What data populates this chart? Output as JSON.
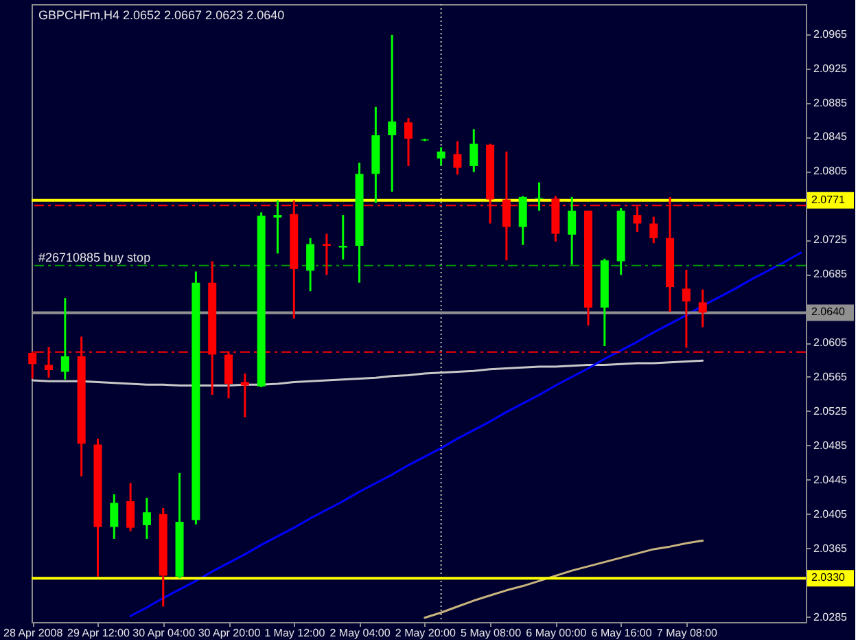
{
  "chart_data": {
    "type": "candlestick",
    "title": "GBPCHFm,H4 2.0652 2.0667 2.0623 2.0640",
    "categories": [
      "28 Apr 2008",
      null,
      null,
      null,
      "29 Apr 12:00",
      null,
      null,
      null,
      "30 Apr 04:00",
      null,
      null,
      null,
      "30 Apr 20:00",
      null,
      null,
      null,
      "1 May 12:00",
      null,
      null,
      null,
      "2 May 04:00",
      null,
      null,
      null,
      "2 May 20:00",
      null,
      null,
      null,
      "5 May 08:00",
      null,
      null,
      null,
      "6 May 00:00",
      null,
      null,
      null,
      "6 May 16:00",
      null,
      null,
      null,
      "7 May 08:00",
      null,
      null,
      null,
      null,
      null,
      null,
      null
    ],
    "ohlc": [
      [
        2.0593,
        2.0595,
        2.0563,
        2.058
      ],
      [
        2.0579,
        2.06,
        2.0564,
        2.0573
      ],
      [
        2.0571,
        2.0657,
        2.0562,
        2.0589
      ],
      [
        2.0589,
        2.0612,
        2.0449,
        2.0487
      ],
      [
        2.0486,
        2.0493,
        2.0332,
        2.039
      ],
      [
        2.039,
        2.0428,
        2.0376,
        2.0418
      ],
      [
        2.042,
        2.0441,
        2.0385,
        2.0389
      ],
      [
        2.0392,
        2.0424,
        2.0376,
        2.0407
      ],
      [
        2.0405,
        2.0412,
        2.0297,
        2.0333
      ],
      [
        2.0332,
        2.0453,
        2.033,
        2.0396
      ],
      [
        2.0398,
        2.0688,
        2.0393,
        2.0675
      ],
      [
        2.0675,
        2.07,
        2.0544,
        2.0591
      ],
      [
        2.0591,
        2.0595,
        2.054,
        2.0557
      ],
      [
        2.0559,
        2.0569,
        2.0518,
        2.0555
      ],
      [
        2.0554,
        2.0757,
        2.0553,
        2.0753
      ],
      [
        2.0751,
        2.0771,
        2.0709,
        2.0754
      ],
      [
        2.0755,
        2.0771,
        2.0633,
        2.0691
      ],
      [
        2.0689,
        2.0727,
        2.0665,
        2.072
      ],
      [
        2.072,
        2.0732,
        2.0684,
        2.0718
      ],
      [
        2.0716,
        2.0754,
        2.0702,
        2.0718
      ],
      [
        2.0718,
        2.0815,
        2.0675,
        2.0802
      ],
      [
        2.0802,
        2.088,
        2.0768,
        2.0847
      ],
      [
        2.0847,
        2.0964,
        2.0781,
        2.0863
      ],
      [
        2.0862,
        2.0867,
        2.0811,
        2.0843
      ],
      [
        2.0841,
        2.0843,
        2.084,
        2.0842
      ],
      [
        2.082,
        2.0833,
        2.0812,
        2.0828
      ],
      [
        2.0825,
        2.084,
        2.0801,
        2.0809
      ],
      [
        2.0811,
        2.0854,
        2.0804,
        2.0837
      ],
      [
        2.0836,
        2.0837,
        2.0744,
        2.0772
      ],
      [
        2.0772,
        2.0828,
        2.0701,
        2.074
      ],
      [
        2.074,
        2.0776,
        2.0719,
        2.0775
      ],
      [
        2.0773,
        2.0792,
        2.0759,
        2.0774
      ],
      [
        2.0773,
        2.0776,
        2.0723,
        2.0732
      ],
      [
        2.0731,
        2.0775,
        2.0696,
        2.0759
      ],
      [
        2.0759,
        2.0759,
        2.0625,
        2.0646
      ],
      [
        2.0646,
        2.0703,
        2.0601,
        2.0701
      ],
      [
        2.07,
        2.0762,
        2.0684,
        2.0759
      ],
      [
        2.0754,
        2.0764,
        2.0734,
        2.0744
      ],
      [
        2.0744,
        2.0752,
        2.0721,
        2.0727
      ],
      [
        2.0727,
        2.0775,
        2.0641,
        2.067
      ],
      [
        2.0668,
        2.069,
        2.0599,
        2.0653
      ],
      [
        2.0652,
        2.0667,
        2.0623,
        2.064
      ],
      null,
      null,
      null,
      null,
      null,
      null
    ],
    "colors": [
      "#ff0000",
      "#ff0000",
      "#00ff00",
      "#ff0000",
      "#ff0000",
      "#00ff00",
      "#ff0000",
      "#00ff00",
      "#ff0000",
      "#00ff00",
      "#00ff00",
      "#ff0000",
      "#ff0000",
      "#ff0000",
      "#00ff00",
      "#00ff00",
      "#ff0000",
      "#00ff00",
      "#ff0000",
      "#00ff00",
      "#00ff00",
      "#00ff00",
      "#00ff00",
      "#ff0000",
      "#00ff00",
      "#00ff00",
      "#ff0000",
      "#00ff00",
      "#ff0000",
      "#ff0000",
      "#00ff00",
      "#00ff00",
      "#ff0000",
      "#00ff00",
      "#ff0000",
      "#00ff00",
      "#00ff00",
      "#ff0000",
      "#ff0000",
      "#ff0000",
      "#ff0000",
      "#ff0000",
      null,
      null,
      null,
      null,
      null,
      null
    ],
    "series": [
      {
        "type": "line",
        "color": "#c8c8c8",
        "values": [
          2.0561,
          2.056,
          2.056,
          2.056,
          2.0559,
          2.0558,
          2.0557,
          2.0556,
          2.0556,
          2.0555,
          2.0555,
          2.0555,
          2.0555,
          2.0556,
          2.0556,
          2.0557,
          2.0559,
          2.056,
          2.0561,
          2.0562,
          2.0563,
          2.0564,
          2.0566,
          2.0567,
          2.0569,
          2.057,
          2.0571,
          2.0572,
          2.0574,
          2.0575,
          2.0576,
          2.0577,
          2.0577,
          2.0578,
          2.0579,
          2.0579,
          2.058,
          2.0581,
          2.0581,
          2.0582,
          2.0583,
          2.0584,
          null,
          null,
          null,
          null,
          null,
          null
        ]
      },
      {
        "type": "line",
        "color": "#c8b47e",
        "values": [
          null,
          null,
          null,
          null,
          null,
          null,
          null,
          null,
          null,
          null,
          null,
          null,
          null,
          null,
          null,
          null,
          null,
          null,
          null,
          null,
          null,
          null,
          null,
          null,
          2.0284,
          2.029,
          2.0297,
          2.0304,
          2.031,
          2.0316,
          2.0321,
          2.0327,
          2.0333,
          2.0339,
          2.0344,
          2.0349,
          2.0354,
          2.0359,
          2.0364,
          2.0367,
          2.0371,
          2.0374,
          null,
          null,
          null,
          null,
          null,
          null
        ]
      },
      {
        "type": "line",
        "color": "#0000ff",
        "values": [
          null,
          null,
          null,
          null,
          null,
          null,
          2.0286,
          2.0296,
          2.0307,
          2.0317,
          2.0327,
          2.0338,
          2.0348,
          2.0358,
          2.0369,
          2.0379,
          2.0389,
          2.04,
          2.041,
          2.042,
          2.0431,
          2.0441,
          2.0451,
          2.0462,
          2.0472,
          2.0482,
          2.0493,
          2.0503,
          2.0513,
          2.0524,
          2.0534,
          2.0544,
          2.0555,
          2.0565,
          2.0575,
          2.0586,
          2.0596,
          2.0606,
          2.0617,
          2.0627,
          2.0637,
          2.0648,
          2.0658,
          2.0668,
          2.0679,
          2.0689,
          2.0699,
          2.071
        ]
      }
    ],
    "ref_lines": [
      {
        "axis": "y",
        "value": 2.0771,
        "label": "2.0771",
        "color": "#ffff00",
        "line_style": "solid"
      },
      {
        "axis": "y",
        "value": 2.0765,
        "color": "#ff0000",
        "line_style": "dashed"
      },
      {
        "axis": "y",
        "value": 2.0695,
        "label": "#26710885 buy stop",
        "color": "#00a000",
        "line_style": "dashed"
      },
      {
        "axis": "y",
        "value": 2.064,
        "label": "2.0640",
        "color": "#909090",
        "line_style": "solid"
      },
      {
        "axis": "y",
        "value": 2.0594,
        "color": "#ff0000",
        "line_style": "dashed"
      },
      {
        "axis": "y",
        "value": 2.033,
        "label": "2.0330",
        "color": "#ffff00",
        "line_style": "solid"
      }
    ],
    "ylim": [
      2.0279,
      2.1
    ],
    "yticks": [
      2.0965,
      2.0925,
      2.0885,
      2.0845,
      2.0805,
      {
        "value": 2.0765,
        "label": null
      },
      2.0725,
      2.0685,
      {
        "value": 2.0645,
        "label": null
      },
      2.0605,
      2.0565,
      2.0525,
      2.0485,
      2.0445,
      2.0405,
      2.0365,
      {
        "value": 2.0325,
        "label": null
      },
      2.0285
    ]
  }
}
